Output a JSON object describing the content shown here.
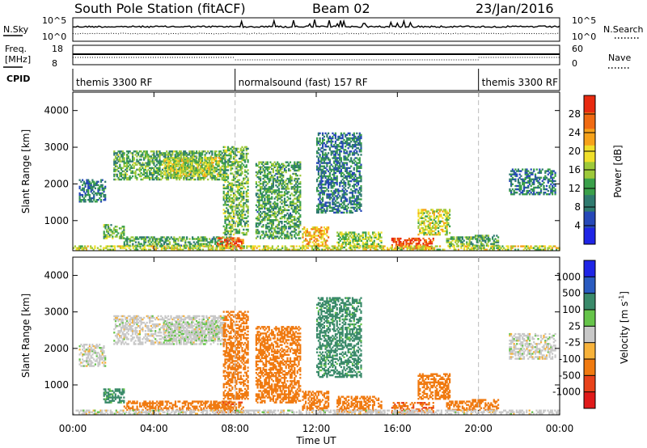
{
  "header": {
    "station": "South Pole Station (fitACF)",
    "beam": "Beam 02",
    "date": "23/Jan/2016"
  },
  "aux_panels": {
    "nsky_label": "N.Sky",
    "nsearch_label": "N.Search",
    "noise_ticks": [
      "10^5",
      "10^0"
    ],
    "freq_label": "Freq.",
    "freq_unit": "[MHz]",
    "freq_ticks": [
      "18",
      "8"
    ],
    "nave_label": "Nave",
    "nave_ticks": [
      "60",
      "0"
    ],
    "cpid_label": "CPID",
    "cpid_segments": [
      {
        "name": "themis 3300 RF",
        "start_hour": 0,
        "end_hour": 8
      },
      {
        "name": "normalsound (fast) 157 RF",
        "start_hour": 8,
        "end_hour": 20
      },
      {
        "name": "themis 3300 RF",
        "start_hour": 20,
        "end_hour": 24
      }
    ]
  },
  "chart_data": [
    {
      "type": "heatmap",
      "panel": "power",
      "ylabel": "Slant Range [km]",
      "xlabel": "Time UT",
      "xlim": [
        0,
        24
      ],
      "ylim": [
        180,
        4500
      ],
      "x_tick_labels": [
        "00:00",
        "04:00",
        "08:00",
        "12:00",
        "16:00",
        "20:00",
        "00:00"
      ],
      "x_tick_values": [
        0,
        4,
        8,
        12,
        16,
        20,
        24
      ],
      "y_ticks": [
        1000,
        2000,
        3000,
        4000
      ],
      "colorbar": {
        "label": "Power [dB]",
        "range": [
          0,
          32
        ],
        "ticks": [
          4,
          8,
          12,
          16,
          20,
          24,
          28
        ],
        "colors": [
          "#1f25e6",
          "#2648b8",
          "#2f7a6f",
          "#3aa04a",
          "#9dc93a",
          "#f0df2a",
          "#f6a21a",
          "#f06a12",
          "#e82a10"
        ]
      },
      "echo_regions": [
        {
          "t0": 0.3,
          "t1": 1.6,
          "r0": 1500,
          "r1": 2100,
          "value": 9
        },
        {
          "t0": 2.0,
          "t1": 7.5,
          "r0": 2100,
          "r1": 2900,
          "value": 13
        },
        {
          "t0": 4.5,
          "t1": 7.3,
          "r0": 2200,
          "r1": 2700,
          "value": 18
        },
        {
          "t0": 1.5,
          "t1": 2.5,
          "r0": 500,
          "r1": 900,
          "value": 14
        },
        {
          "t0": 2.5,
          "t1": 7.8,
          "r0": 300,
          "r1": 560,
          "value": 12
        },
        {
          "t0": 7.1,
          "t1": 8.4,
          "r0": 230,
          "r1": 520,
          "value": 28
        },
        {
          "t0": 7.4,
          "t1": 8.6,
          "r0": 600,
          "r1": 3000,
          "value": 14
        },
        {
          "t0": 9.0,
          "t1": 11.2,
          "r0": 500,
          "r1": 2600,
          "value": 12
        },
        {
          "t0": 11.3,
          "t1": 12.6,
          "r0": 300,
          "r1": 800,
          "value": 22
        },
        {
          "t0": 12.0,
          "t1": 14.2,
          "r0": 1200,
          "r1": 3400,
          "value": 9
        },
        {
          "t0": 13.0,
          "t1": 15.2,
          "r0": 250,
          "r1": 700,
          "value": 16
        },
        {
          "t0": 15.7,
          "t1": 17.8,
          "r0": 220,
          "r1": 520,
          "value": 29
        },
        {
          "t0": 17.0,
          "t1": 18.6,
          "r0": 600,
          "r1": 1300,
          "value": 18
        },
        {
          "t0": 18.4,
          "t1": 19.6,
          "r0": 300,
          "r1": 560,
          "value": 14
        },
        {
          "t0": 19.6,
          "t1": 21.0,
          "r0": 300,
          "r1": 600,
          "value": 12
        },
        {
          "t0": 21.5,
          "t1": 23.8,
          "r0": 1700,
          "r1": 2400,
          "value": 9
        },
        {
          "t0": 0.0,
          "t1": 24.0,
          "r0": 190,
          "r1": 300,
          "value": 18
        }
      ]
    },
    {
      "type": "heatmap",
      "panel": "velocity",
      "ylabel": "Slant Range [km]",
      "xlabel": "Time UT",
      "xlim": [
        0,
        24
      ],
      "ylim": [
        180,
        4500
      ],
      "x_tick_labels": [
        "00:00",
        "04:00",
        "08:00",
        "12:00",
        "16:00",
        "20:00",
        "00:00"
      ],
      "x_tick_values": [
        0,
        4,
        8,
        12,
        16,
        20,
        24
      ],
      "y_ticks": [
        1000,
        2000,
        3000,
        4000
      ],
      "colorbar": {
        "label": "Velocity [m s",
        "label_superscript": "-1",
        "label_end": "]",
        "tick_labels": [
          "1000",
          "500",
          "100",
          "25",
          "-25",
          "-100",
          "-500",
          "-1000"
        ],
        "colors": [
          "#1f25e6",
          "#2a5bc0",
          "#3a8a6a",
          "#66c44a",
          "#c8c8c8",
          "#f7b23a",
          "#f07a10",
          "#e8421a",
          "#e01a1a"
        ]
      },
      "echo_regions": [
        {
          "t0": 0.3,
          "t1": 1.6,
          "r0": 1500,
          "r1": 2100,
          "value": 0
        },
        {
          "t0": 2.0,
          "t1": 7.5,
          "r0": 2100,
          "r1": 2900,
          "value": 0
        },
        {
          "t0": 4.5,
          "t1": 7.3,
          "r0": 2200,
          "r1": 2700,
          "value": 10
        },
        {
          "t0": 1.5,
          "t1": 2.5,
          "r0": 500,
          "r1": 900,
          "value": 150
        },
        {
          "t0": 2.5,
          "t1": 7.8,
          "r0": 300,
          "r1": 560,
          "value": -300
        },
        {
          "t0": 7.1,
          "t1": 8.4,
          "r0": 230,
          "r1": 520,
          "value": -400
        },
        {
          "t0": 7.4,
          "t1": 8.6,
          "r0": 600,
          "r1": 3000,
          "value": -250
        },
        {
          "t0": 9.0,
          "t1": 11.2,
          "r0": 500,
          "r1": 2600,
          "value": -200
        },
        {
          "t0": 11.3,
          "t1": 12.6,
          "r0": 300,
          "r1": 800,
          "value": -350
        },
        {
          "t0": 12.0,
          "t1": 14.2,
          "r0": 1200,
          "r1": 3400,
          "value": 150
        },
        {
          "t0": 13.0,
          "t1": 15.2,
          "r0": 250,
          "r1": 700,
          "value": -300
        },
        {
          "t0": 15.7,
          "t1": 17.8,
          "r0": 220,
          "r1": 520,
          "value": -450
        },
        {
          "t0": 17.0,
          "t1": 18.6,
          "r0": 600,
          "r1": 1300,
          "value": -300
        },
        {
          "t0": 18.4,
          "t1": 19.6,
          "r0": 300,
          "r1": 560,
          "value": -300
        },
        {
          "t0": 19.6,
          "t1": 21.0,
          "r0": 300,
          "r1": 600,
          "value": -200
        },
        {
          "t0": 21.5,
          "t1": 23.8,
          "r0": 1700,
          "r1": 2400,
          "value": 0
        },
        {
          "t0": 0.0,
          "t1": 24.0,
          "r0": 190,
          "r1": 300,
          "value": 0
        }
      ]
    }
  ]
}
